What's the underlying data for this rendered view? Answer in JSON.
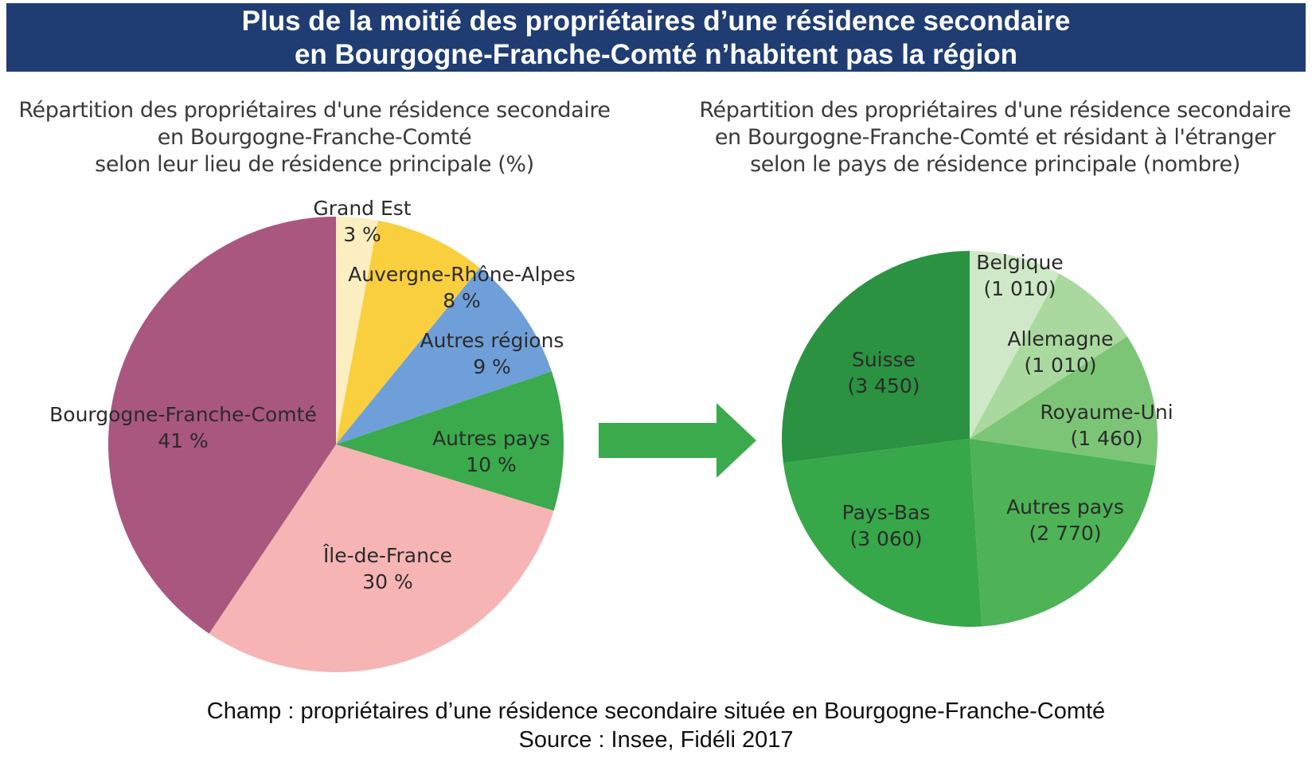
{
  "header": {
    "line1": "Plus de la moitié des propriétaires d’une résidence secondaire",
    "line2": "en Bourgogne-Franche-Comté n’habitent pas la région"
  },
  "chart_data": [
    {
      "type": "pie",
      "title_lines": [
        "Répartition des propriétaires d'une résidence secondaire",
        "en Bourgogne-Franche-Comté",
        "selon leur lieu de résidence principale (%)"
      ],
      "slices": [
        {
          "name": "Grand Est",
          "value": 3,
          "label": "3 %",
          "color": "#fbeec0"
        },
        {
          "name": "Auvergne-Rhône-Alpes",
          "value": 8,
          "label": "8 %",
          "color": "#f9cf3e"
        },
        {
          "name": "Autres régions",
          "value": 9,
          "label": "9 %",
          "color": "#6f9fd8"
        },
        {
          "name": "Autres pays",
          "value": 10,
          "label": "10 %",
          "color": "#3aaa4c"
        },
        {
          "name": "Île-de-France",
          "value": 30,
          "label": "30 %",
          "color": "#f6b4b4"
        },
        {
          "name": "Bourgogne-Franche-Comté",
          "value": 41,
          "label": "41 %",
          "color": "#a9577e"
        }
      ]
    },
    {
      "type": "pie",
      "title_lines": [
        "Répartition des propriétaires d'une résidence secondaire",
        "en Bourgogne-Franche-Comté et résidant à l'étranger",
        "selon le pays de résidence principale (nombre)"
      ],
      "slices": [
        {
          "name": "Belgique",
          "value": 1010,
          "label": "(1 010)",
          "color": "#cfe8c7"
        },
        {
          "name": "Allemagne",
          "value": 1010,
          "label": "(1 010)",
          "color": "#a9d99e"
        },
        {
          "name": "Royaume-Uni",
          "value": 1460,
          "label": "(1 460)",
          "color": "#7cc576"
        },
        {
          "name": "Autres pays",
          "value": 2770,
          "label": "(2 770)",
          "color": "#4db356"
        },
        {
          "name": "Pays-Bas",
          "value": 3060,
          "label": "(3 060)",
          "color": "#36a849"
        },
        {
          "name": "Suisse",
          "value": 3450,
          "label": "(3 450)",
          "color": "#2a9241"
        }
      ]
    }
  ],
  "arrow": {
    "color": "#3aaa4c",
    "icon": "right-arrow-icon"
  },
  "footer": {
    "champ": "Champ : propriétaires d’une résidence secondaire située en Bourgogne-Franche-Comté",
    "source": "Source : Insee, Fidéli 2017"
  }
}
